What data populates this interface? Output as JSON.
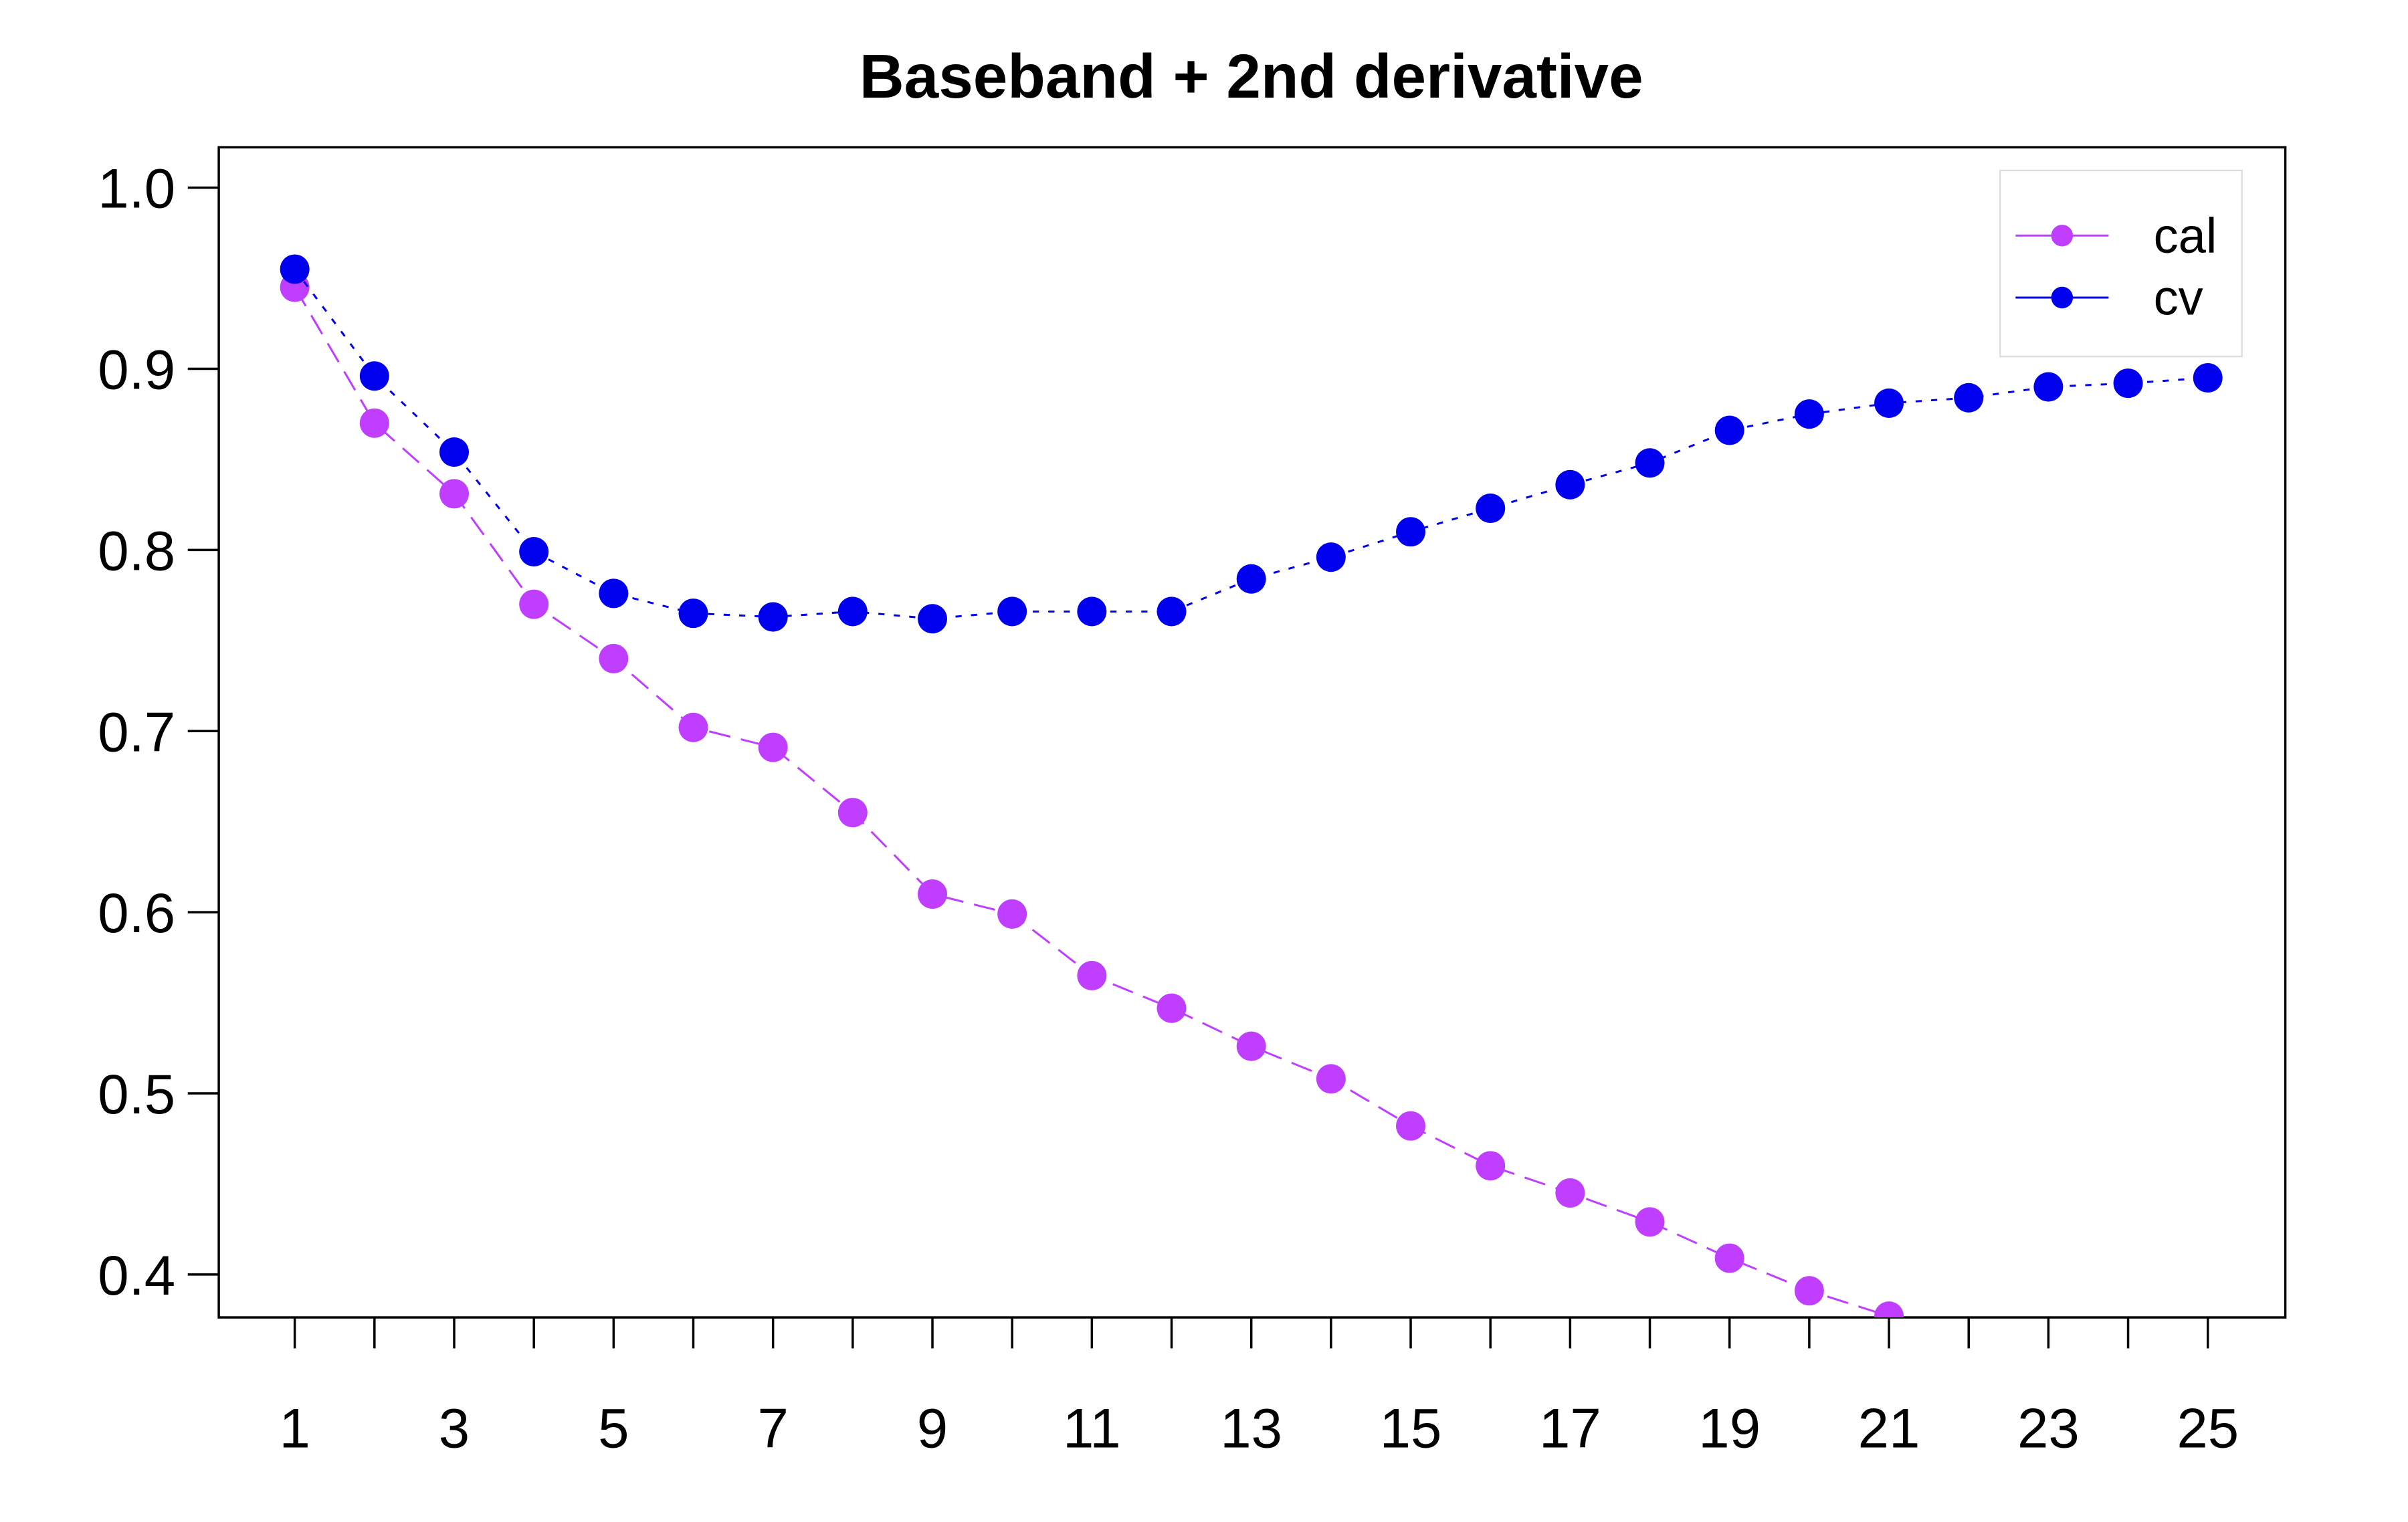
{
  "chart_data": {
    "type": "line",
    "title": "Baseband + 2nd derivative",
    "categories": [
      "1",
      null,
      "3",
      null,
      "5",
      null,
      "7",
      null,
      "9",
      null,
      "11",
      null,
      "13",
      null,
      "15",
      null,
      "17",
      null,
      "19",
      null,
      "21",
      null,
      "23",
      null,
      "25"
    ],
    "series": [
      {
        "name": "cal",
        "color": "#bf3eff",
        "values": [
          0.945,
          0.87,
          0.831,
          0.77,
          0.74,
          0.702,
          0.691,
          0.655,
          0.61,
          0.599,
          0.565,
          0.547,
          0.526,
          0.508,
          0.482,
          0.46,
          0.445,
          0.429,
          0.409,
          0.391,
          0.377,
          null,
          null,
          null,
          null
        ]
      },
      {
        "name": "cv",
        "color": "#0000ee",
        "values": [
          0.955,
          0.896,
          0.854,
          0.799,
          0.776,
          0.765,
          0.763,
          0.766,
          0.762,
          0.766,
          0.766,
          0.766,
          0.784,
          0.796,
          0.81,
          0.823,
          0.836,
          0.848,
          0.866,
          0.875,
          0.881,
          0.884,
          0.89,
          0.892,
          0.895
        ]
      }
    ],
    "ylim": [
      0.3763,
      1.0223
    ],
    "yticks": [
      0.4,
      0.5,
      0.6,
      0.7,
      0.8,
      0.9,
      {
        "value": 1.0,
        "label": "1.0"
      }
    ],
    "legend": "top-right"
  }
}
